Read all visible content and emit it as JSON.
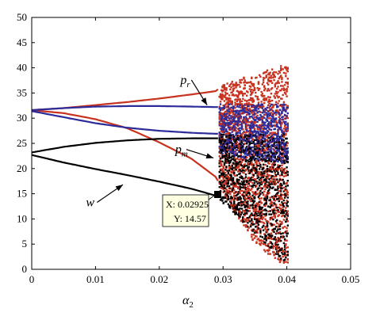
{
  "chart_data": {
    "type": "scatter",
    "title": "",
    "xlabel": "α",
    "xlabel_sub": "2",
    "ylabel": "",
    "xlim": [
      0,
      0.05
    ],
    "ylim": [
      0,
      50
    ],
    "xticks": [
      "0",
      "0.01",
      "0.02",
      "0.03",
      "0.04",
      "0.05"
    ],
    "yticks": [
      "0",
      "5",
      "10",
      "15",
      "20",
      "25",
      "30",
      "35",
      "40",
      "45",
      "50"
    ],
    "grid": false,
    "bifurcation_point": 0.0293,
    "chaos_end": 0.04,
    "series": [
      {
        "name": "pr",
        "color": "#c8321e",
        "x": [
          0,
          0.005,
          0.01,
          0.015,
          0.02,
          0.025,
          0.029,
          0.03,
          0.035,
          0.04
        ],
        "upper": [
          31.6,
          32.0,
          32.6,
          33.2,
          33.9,
          34.7,
          35.4,
          37.0,
          39.0,
          41.0
        ],
        "lower": [
          31.6,
          31.0,
          29.8,
          28.0,
          25.2,
          22.0,
          18.2,
          15.0,
          5.0,
          0.5
        ]
      },
      {
        "name": "blue",
        "color": "#2b2b9a",
        "x": [
          0,
          0.005,
          0.01,
          0.015,
          0.02,
          0.025,
          0.029
        ],
        "upper": [
          31.6,
          32.0,
          32.3,
          32.4,
          32.4,
          32.3,
          32.2
        ],
        "lower": [
          31.4,
          30.2,
          29.0,
          28.1,
          27.5,
          27.1,
          26.9
        ],
        "chaos_range": [
          23.0,
          33.0
        ]
      },
      {
        "name": "w",
        "color": "#000000",
        "x": [
          0,
          0.005,
          0.01,
          0.015,
          0.02,
          0.025,
          0.029
        ],
        "upper": [
          23.2,
          24.3,
          25.1,
          25.6,
          25.9,
          26.0,
          26.0
        ],
        "lower": [
          22.7,
          21.2,
          19.9,
          18.7,
          17.4,
          16.0,
          14.57
        ],
        "chaos_range": [
          1.0,
          27.0
        ]
      }
    ],
    "annotations": [
      {
        "label": "p",
        "sub": "r",
        "x": 0.0233,
        "y": 36.8,
        "arrow_to": [
          0.0275,
          32.6
        ]
      },
      {
        "label": "p",
        "sub": "m",
        "x": 0.0225,
        "y": 23.0,
        "arrow_to": [
          0.0285,
          22.1
        ]
      },
      {
        "label": "w",
        "sub": "",
        "x": 0.0085,
        "y": 12.5,
        "arrow_to": [
          0.0143,
          16.8
        ]
      }
    ],
    "datatip": {
      "x_label": "X: 0.02925",
      "y_label": "Y: 14.57",
      "x": 0.02925,
      "y": 14.57
    }
  }
}
